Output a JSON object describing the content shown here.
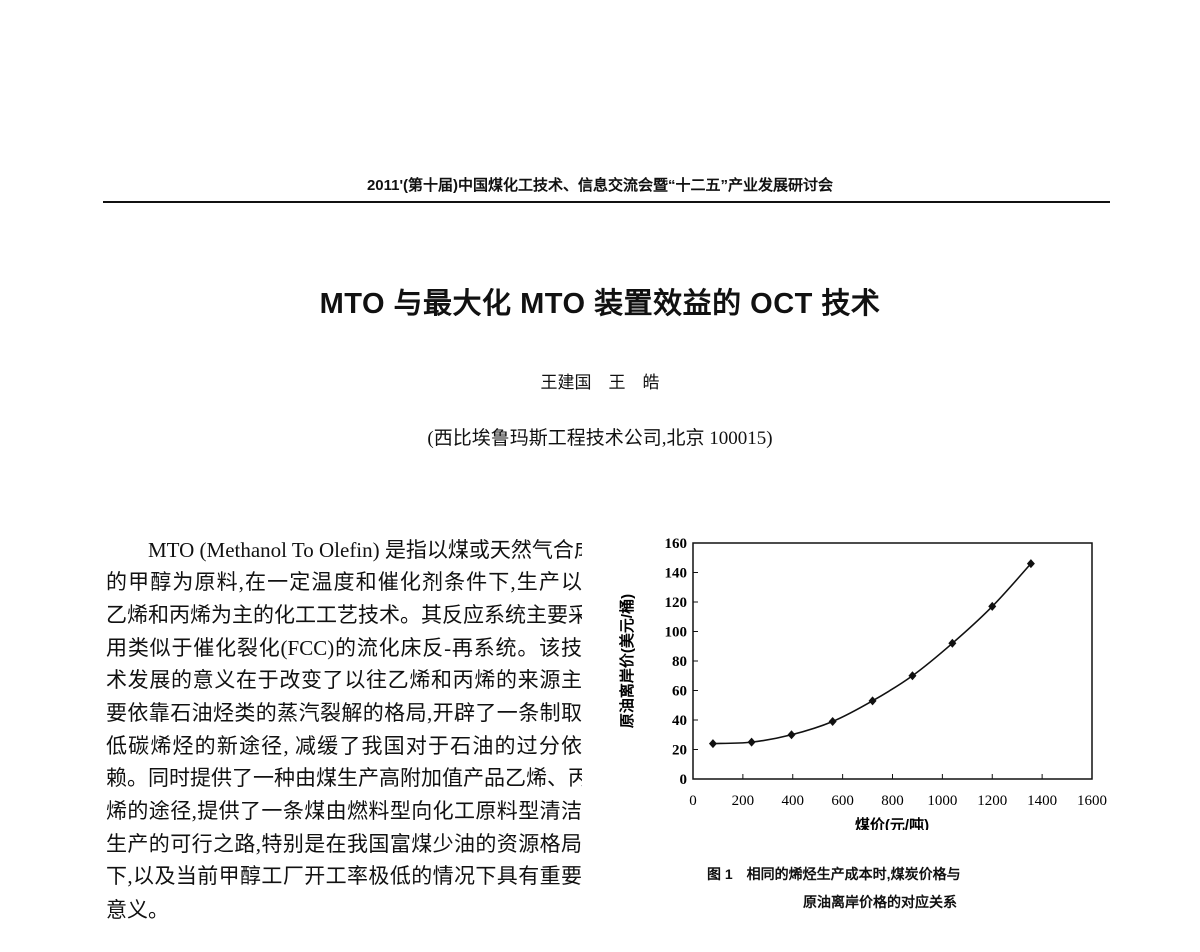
{
  "running_header": "2011'(第十届)中国煤化工技术、信息交流会暨“十二五”产业发展研讨会",
  "title": "MTO 与最大化 MTO 装置效益的 OCT 技术",
  "authors": "王建国　王　皓",
  "affiliation": "(西比埃鲁玛斯工程技术公司,北京 100015)",
  "body_lines": [
    "MTO (Methanol To Olefin) 是指以煤或天然气合成",
    "的甲醇为原料,在一定温度和催化剂条件下,生产以",
    "乙烯和丙烯为主的化工工艺技术。其反应系统主要采",
    "用类似于催化裂化(FCC)的流化床反-再系统。该技",
    "术发展的意义在于改变了以往乙烯和丙烯的来源主",
    "要依靠石油烃类的蒸汽裂解的格局,开辟了一条制取",
    "低碳烯烃的新途径, 减缓了我国对于石油的过分依",
    "赖。同时提供了一种由煤生产高附加值产品乙烯、丙",
    "烯的途径,提供了一条煤由燃料型向化工原料型清洁",
    "生产的可行之路,特别是在我国富煤少油的资源格局",
    "下,以及当前甲醇工厂开工率极低的情况下具有重要",
    "意义。"
  ],
  "figure": {
    "caption_line1": "图 1　相同的烯烃生产成本时,煤炭价格与",
    "caption_line2": "原油离岸价格的对应关系"
  },
  "chart_data": {
    "type": "line",
    "xlabel": "煤价(元/吨)",
    "ylabel": "原油离岸价(美元/桶)",
    "xlim": [
      0,
      1600
    ],
    "ylim": [
      0,
      160
    ],
    "xticks": [
      0,
      200,
      400,
      600,
      800,
      1000,
      1200,
      1400,
      1600
    ],
    "yticks": [
      0,
      20,
      40,
      60,
      80,
      100,
      120,
      140,
      160
    ],
    "grid": false,
    "marker": "diamond",
    "x": [
      80,
      235,
      395,
      560,
      720,
      880,
      1040,
      1200,
      1355
    ],
    "y": [
      24,
      25,
      30,
      39,
      53,
      70,
      92,
      117,
      146
    ],
    "color": "#111111"
  }
}
